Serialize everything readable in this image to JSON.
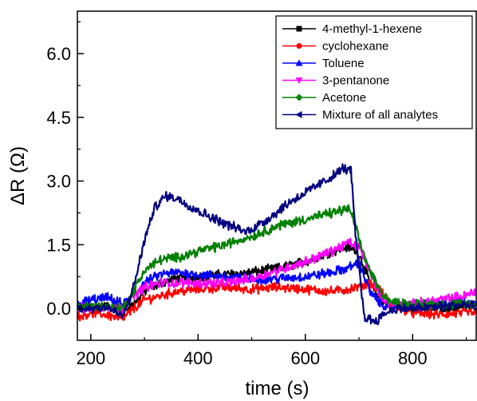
{
  "chart_data": {
    "type": "line",
    "xlabel": "time (s)",
    "ylabel": "ΔR (Ω)",
    "xlim": [
      175,
      920
    ],
    "ylim": [
      -0.75,
      7.0
    ],
    "x_ticks": [
      200,
      400,
      600,
      800
    ],
    "y_ticks": [
      0.0,
      1.5,
      3.0,
      4.5,
      6.0
    ],
    "x_tick_labels": [
      "200",
      "400",
      "600",
      "800"
    ],
    "y_tick_labels": [
      "0.0",
      "1.5",
      "3.0",
      "4.5",
      "6.0"
    ],
    "legend_position": "top-right",
    "grid": false,
    "series": [
      {
        "name": "4-methyl-1-hexene",
        "color": "#000000",
        "marker": "square",
        "x": [
          175,
          200,
          230,
          260,
          280,
          300,
          330,
          360,
          400,
          450,
          500,
          550,
          600,
          650,
          680,
          700,
          720,
          740,
          760,
          800,
          850,
          900,
          920
        ],
        "y": [
          0.0,
          0.05,
          0.05,
          -0.05,
          0.1,
          0.4,
          0.6,
          0.7,
          0.75,
          0.8,
          0.85,
          0.95,
          1.1,
          1.35,
          1.45,
          1.3,
          0.6,
          0.2,
          0.05,
          0.0,
          0.0,
          0.05,
          0.05
        ]
      },
      {
        "name": "cyclohexane",
        "color": "#ff0000",
        "marker": "circle",
        "x": [
          175,
          200,
          230,
          260,
          280,
          300,
          330,
          360,
          400,
          450,
          500,
          550,
          600,
          650,
          680,
          700,
          720,
          740,
          760,
          800,
          850,
          900,
          920
        ],
        "y": [
          -0.2,
          -0.1,
          -0.15,
          -0.25,
          0.0,
          0.2,
          0.3,
          0.4,
          0.45,
          0.5,
          0.45,
          0.5,
          0.45,
          0.4,
          0.45,
          0.5,
          0.6,
          0.4,
          0.1,
          -0.1,
          -0.15,
          -0.1,
          -0.1
        ]
      },
      {
        "name": "Toluene",
        "color": "#0000ff",
        "marker": "triangle-up",
        "x": [
          175,
          200,
          230,
          260,
          280,
          300,
          330,
          360,
          400,
          450,
          500,
          550,
          600,
          650,
          680,
          700,
          720,
          740,
          760,
          800,
          850,
          900,
          920
        ],
        "y": [
          0.1,
          0.2,
          0.25,
          0.1,
          0.3,
          0.6,
          0.8,
          0.85,
          0.8,
          0.75,
          0.7,
          0.7,
          0.75,
          0.85,
          0.95,
          1.1,
          0.4,
          0.1,
          0.05,
          0.05,
          0.1,
          0.15,
          0.15
        ]
      },
      {
        "name": "3-pentanone",
        "color": "#ff00ff",
        "marker": "triangle-down",
        "x": [
          175,
          200,
          230,
          260,
          280,
          300,
          330,
          360,
          400,
          450,
          500,
          550,
          600,
          650,
          680,
          700,
          720,
          740,
          760,
          800,
          850,
          900,
          920
        ],
        "y": [
          0.0,
          0.0,
          0.05,
          0.0,
          0.3,
          0.5,
          0.6,
          0.6,
          0.6,
          0.6,
          0.7,
          0.9,
          1.1,
          1.35,
          1.55,
          1.45,
          0.9,
          0.3,
          0.1,
          0.1,
          0.2,
          0.3,
          0.45
        ]
      },
      {
        "name": "Acetone",
        "color": "#008000",
        "marker": "diamond",
        "x": [
          175,
          200,
          230,
          260,
          280,
          300,
          330,
          360,
          400,
          450,
          500,
          550,
          600,
          650,
          680,
          690,
          700,
          720,
          740,
          760,
          800,
          850,
          900,
          920
        ],
        "y": [
          0.05,
          0.05,
          0.05,
          0.0,
          0.4,
          0.9,
          1.15,
          1.2,
          1.35,
          1.5,
          1.7,
          1.95,
          2.1,
          2.25,
          2.35,
          2.1,
          1.6,
          0.9,
          0.4,
          0.15,
          0.1,
          0.1,
          0.1,
          0.1
        ]
      },
      {
        "name": "Mixture of all analytes",
        "color": "#000080",
        "marker": "triangle-left",
        "x": [
          175,
          200,
          230,
          260,
          280,
          300,
          320,
          340,
          360,
          400,
          450,
          490,
          530,
          570,
          610,
          650,
          670,
          685,
          695,
          710,
          730,
          750,
          770,
          800,
          850,
          900,
          920
        ],
        "y": [
          0.0,
          0.0,
          0.05,
          -0.2,
          0.5,
          1.6,
          2.4,
          2.65,
          2.6,
          2.3,
          2.0,
          1.8,
          2.1,
          2.5,
          2.8,
          3.1,
          3.3,
          3.25,
          1.5,
          -0.2,
          -0.3,
          -0.1,
          0.0,
          0.0,
          0.05,
          0.1,
          0.0
        ]
      }
    ]
  }
}
